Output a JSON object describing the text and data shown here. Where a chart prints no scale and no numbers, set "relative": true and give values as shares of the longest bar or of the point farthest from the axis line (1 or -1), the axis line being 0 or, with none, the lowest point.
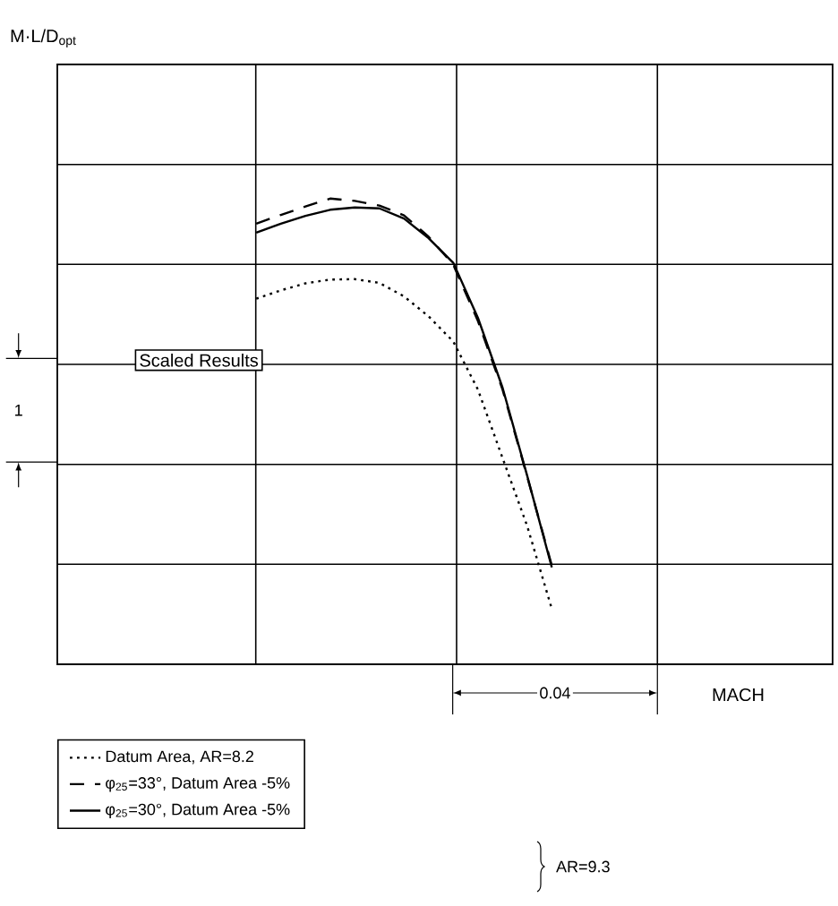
{
  "chart_data": {
    "type": "line",
    "relative": true,
    "categories": [
      null,
      null,
      null,
      null,
      null,
      null,
      null,
      null,
      null,
      null,
      null,
      null,
      null
    ],
    "grid": true,
    "legend": "bottom",
    "marker": "none",
    "annotations": [
      "M·L/D$_{opt}$",
      "Scaled Results",
      "1",
      "0.04",
      "MACH",
      "AR=9.3"
    ],
    "series": [
      {
        "name": "Datum Area,  AR=8.2",
        "color": "#000000",
        "line_style": "dotted",
        "values": [
          0.785,
          0.803,
          0.818,
          0.826,
          0.827,
          0.819,
          0.79,
          0.747,
          0.693,
          0.59,
          0.443,
          0.297,
          0.119
        ]
      },
      {
        "name": "φ$_{25}$=33°, Datum Area -5%",
        "color": "#000000",
        "line_style": "dashed",
        "values": [
          0.946,
          0.965,
          0.983,
          1.0,
          0.995,
          0.985,
          0.964,
          0.918,
          0.858,
          0.737,
          0.59,
          0.403,
          0.212
        ]
      },
      {
        "name": "φ$_{25}$=30°, Datum Area -5%",
        "color": "#000000",
        "line_style": "solid",
        "values": [
          0.927,
          0.946,
          0.963,
          0.976,
          0.981,
          0.979,
          0.957,
          0.915,
          0.862,
          0.744,
          0.594,
          0.405,
          0.208
        ]
      }
    ]
  }
}
